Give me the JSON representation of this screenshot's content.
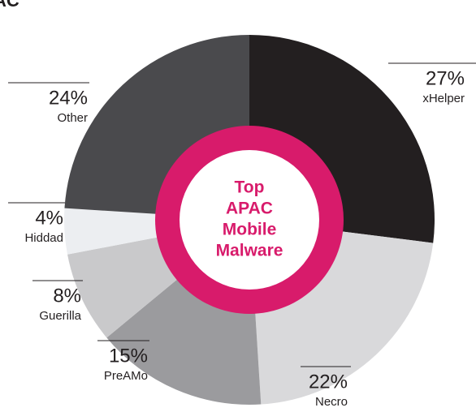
{
  "chart_data": {
    "type": "pie",
    "title": "AC",
    "center_text": [
      "Top",
      "APAC",
      "Mobile",
      "Malware"
    ],
    "categories": [
      "xHelper",
      "Necro",
      "PreAMo",
      "Guerilla",
      "Hiddad",
      "Other"
    ],
    "values": [
      27,
      22,
      15,
      8,
      4,
      24
    ],
    "value_labels": [
      "27%",
      "22%",
      "15%",
      "8%",
      "4%",
      "24%"
    ],
    "colors": [
      "#231f20",
      "#d9d9db",
      "#9b9b9e",
      "#c9c9cb",
      "#eceef1",
      "#4a4a4d"
    ],
    "ring_color": "#d81b6b"
  }
}
